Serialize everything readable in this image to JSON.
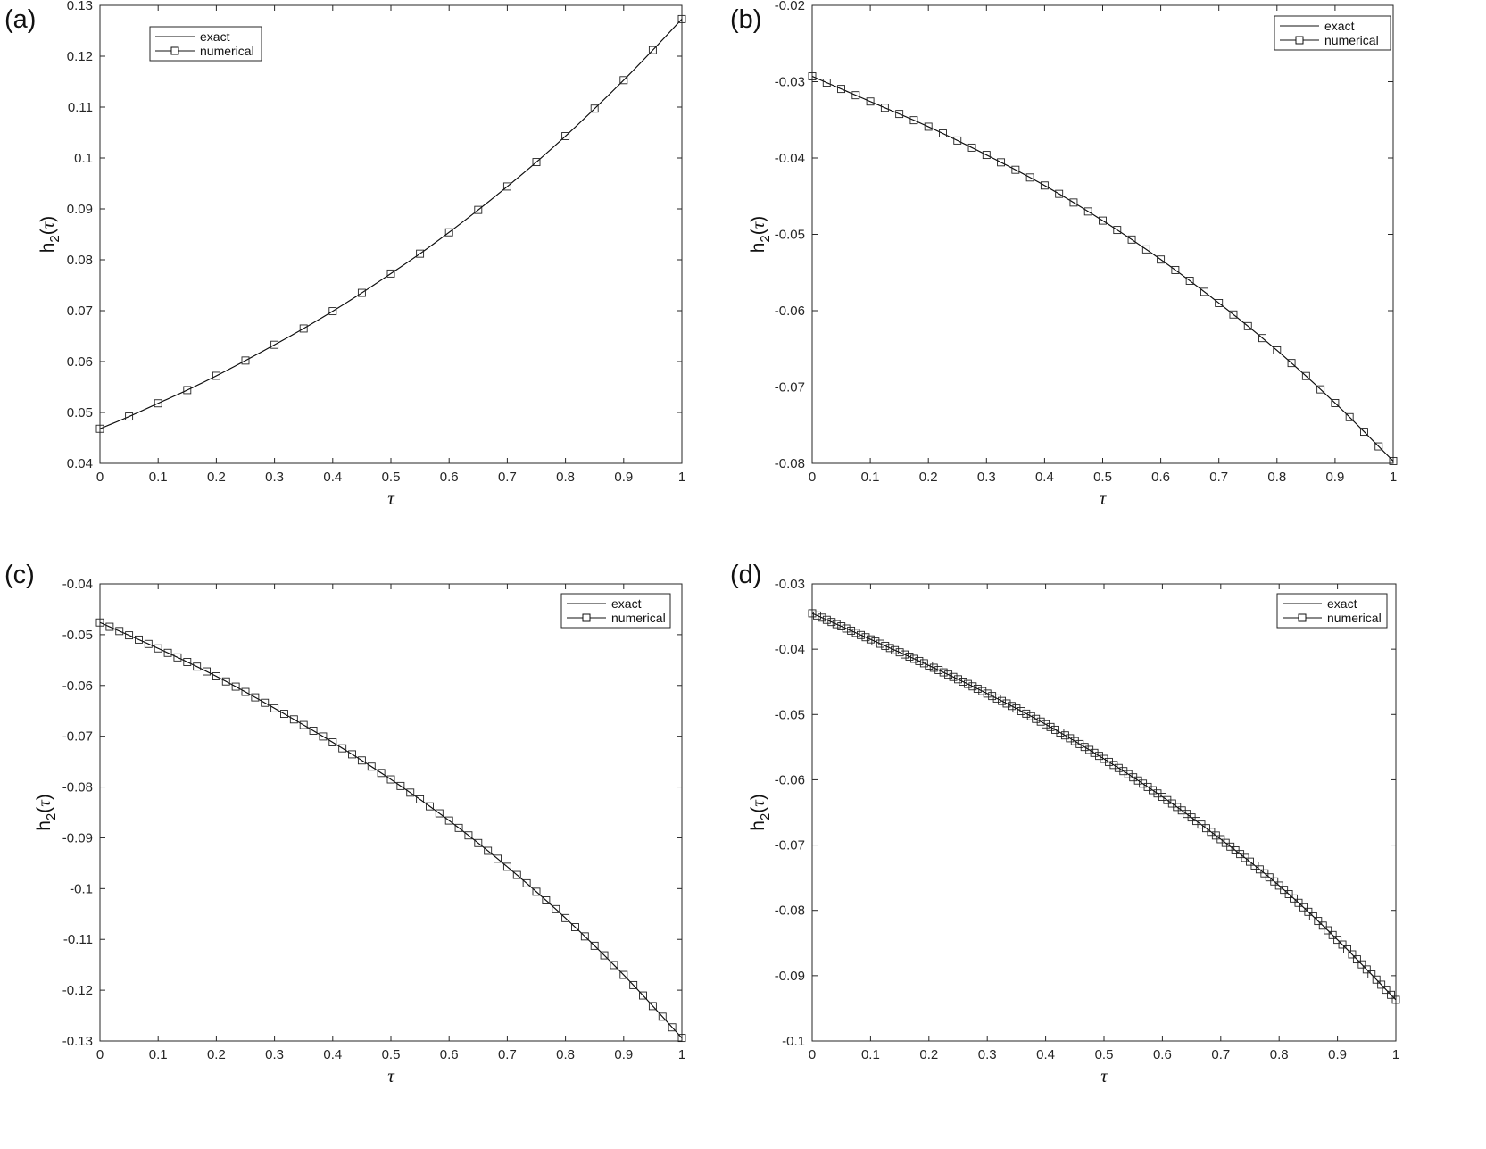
{
  "chart_data": [
    {
      "type": "line",
      "panel_label": "(a)",
      "xlabel": "τ",
      "ylabel": {
        "base": "h",
        "sub": "2",
        "open": "(",
        "var": "τ",
        "close": ")"
      },
      "xlim": [
        0,
        1
      ],
      "ylim": [
        0.04,
        0.13
      ],
      "xticks": [
        0,
        0.1,
        0.2,
        0.3,
        0.4,
        0.5,
        0.6,
        0.7,
        0.8,
        0.9,
        1
      ],
      "xtick_labels": [
        "0",
        "0.1",
        "0.2",
        "0.3",
        "0.4",
        "0.5",
        "0.6",
        "0.7",
        "0.8",
        "0.9",
        "1"
      ],
      "yticks": [
        0.04,
        0.05,
        0.06,
        0.07,
        0.08,
        0.09,
        0.1,
        0.11,
        0.12,
        0.13
      ],
      "ytick_labels": [
        "0.04",
        "0.05",
        "0.06",
        "0.07",
        "0.08",
        "0.09",
        "0.1",
        "0.11",
        "0.12",
        "0.13"
      ],
      "grid": false,
      "legend_position": "top-left",
      "series": [
        {
          "name": "exact",
          "style": "line",
          "x": [
            0,
            0.05,
            0.1,
            0.15,
            0.2,
            0.25,
            0.3,
            0.35,
            0.4,
            0.45,
            0.5,
            0.55,
            0.6,
            0.65,
            0.7,
            0.75,
            0.8,
            0.85,
            0.9,
            0.95,
            1
          ],
          "y": [
            0.0468,
            0.0492,
            0.0518,
            0.0544,
            0.0572,
            0.0602,
            0.0633,
            0.0665,
            0.0699,
            0.0735,
            0.0773,
            0.0812,
            0.0854,
            0.0898,
            0.0944,
            0.0992,
            0.1043,
            0.1097,
            0.1153,
            0.1212,
            0.1273
          ]
        },
        {
          "name": "numerical",
          "style": "line-square",
          "n_points": 21
        }
      ]
    },
    {
      "type": "line",
      "panel_label": "(b)",
      "xlabel": "τ",
      "ylabel": {
        "base": "h",
        "sub": "2",
        "open": "(",
        "var": "τ",
        "close": ")"
      },
      "xlim": [
        0,
        1
      ],
      "ylim": [
        -0.08,
        -0.02
      ],
      "xticks": [
        0,
        0.1,
        0.2,
        0.3,
        0.4,
        0.5,
        0.6,
        0.7,
        0.8,
        0.9,
        1
      ],
      "xtick_labels": [
        "0",
        "0.1",
        "0.2",
        "0.3",
        "0.4",
        "0.5",
        "0.6",
        "0.7",
        "0.8",
        "0.9",
        "1"
      ],
      "yticks": [
        -0.08,
        -0.07,
        -0.06,
        -0.05,
        -0.04,
        -0.03,
        -0.02
      ],
      "ytick_labels": [
        "-0.08",
        "-0.07",
        "-0.06",
        "-0.05",
        "-0.04",
        "-0.03",
        "-0.02"
      ],
      "grid": false,
      "legend_position": "top-right",
      "series": [
        {
          "name": "exact",
          "style": "line",
          "x": [
            0,
            0.1,
            0.2,
            0.3,
            0.4,
            0.5,
            0.6,
            0.7,
            0.8,
            0.9,
            1
          ],
          "y": [
            -0.0293,
            -0.0326,
            -0.0359,
            -0.0396,
            -0.0436,
            -0.0482,
            -0.0533,
            -0.059,
            -0.0652,
            -0.0721,
            -0.0797
          ]
        },
        {
          "name": "numerical",
          "style": "line-square",
          "n_points": 41
        }
      ]
    },
    {
      "type": "line",
      "panel_label": "(c)",
      "xlabel": "τ",
      "ylabel": {
        "base": "h",
        "sub": "2",
        "open": "(",
        "var": "τ",
        "close": ")"
      },
      "xlim": [
        0,
        1
      ],
      "ylim": [
        -0.13,
        -0.04
      ],
      "xticks": [
        0,
        0.1,
        0.2,
        0.3,
        0.4,
        0.5,
        0.6,
        0.7,
        0.8,
        0.9,
        1
      ],
      "xtick_labels": [
        "0",
        "0.1",
        "0.2",
        "0.3",
        "0.4",
        "0.5",
        "0.6",
        "0.7",
        "0.8",
        "0.9",
        "1"
      ],
      "yticks": [
        -0.13,
        -0.12,
        -0.11,
        -0.1,
        -0.09,
        -0.08,
        -0.07,
        -0.06,
        -0.05,
        -0.04
      ],
      "ytick_labels": [
        "-0.13",
        "-0.12",
        "-0.11",
        "-0.1",
        "-0.09",
        "-0.08",
        "-0.07",
        "-0.06",
        "-0.05",
        "-0.04"
      ],
      "grid": false,
      "legend_position": "top-right",
      "series": [
        {
          "name": "exact",
          "style": "line",
          "x": [
            0,
            0.1,
            0.2,
            0.3,
            0.4,
            0.5,
            0.6,
            0.7,
            0.8,
            0.9,
            1
          ],
          "y": [
            -0.0476,
            -0.0527,
            -0.0582,
            -0.0645,
            -0.0712,
            -0.0785,
            -0.0866,
            -0.0957,
            -0.1058,
            -0.117,
            -0.1294
          ]
        },
        {
          "name": "numerical",
          "style": "line-square",
          "n_points": 61
        }
      ]
    },
    {
      "type": "line",
      "panel_label": "(d)",
      "xlabel": "τ",
      "ylabel": {
        "base": "h",
        "sub": "2",
        "open": "(",
        "var": "τ",
        "close": ")"
      },
      "xlim": [
        0,
        1
      ],
      "ylim": [
        -0.1,
        -0.03
      ],
      "xticks": [
        0,
        0.1,
        0.2,
        0.3,
        0.4,
        0.5,
        0.6,
        0.7,
        0.8,
        0.9,
        1
      ],
      "xtick_labels": [
        "0",
        "0.1",
        "0.2",
        "0.3",
        "0.4",
        "0.5",
        "0.6",
        "0.7",
        "0.8",
        "0.9",
        "1"
      ],
      "yticks": [
        -0.1,
        -0.09,
        -0.08,
        -0.07,
        -0.06,
        -0.05,
        -0.04,
        -0.03
      ],
      "ytick_labels": [
        "-0.1",
        "-0.09",
        "-0.08",
        "-0.07",
        "-0.06",
        "-0.05",
        "-0.04",
        "-0.03"
      ],
      "grid": false,
      "legend_position": "top-right",
      "series": [
        {
          "name": "exact",
          "style": "line",
          "x": [
            0,
            0.1,
            0.2,
            0.3,
            0.4,
            0.5,
            0.6,
            0.7,
            0.8,
            0.9,
            1
          ],
          "y": [
            -0.0345,
            -0.0385,
            -0.0425,
            -0.0468,
            -0.0515,
            -0.0568,
            -0.0626,
            -0.0691,
            -0.0762,
            -0.0845,
            -0.0937
          ]
        },
        {
          "name": "numerical",
          "style": "line-square",
          "n_points": 121
        }
      ]
    }
  ]
}
